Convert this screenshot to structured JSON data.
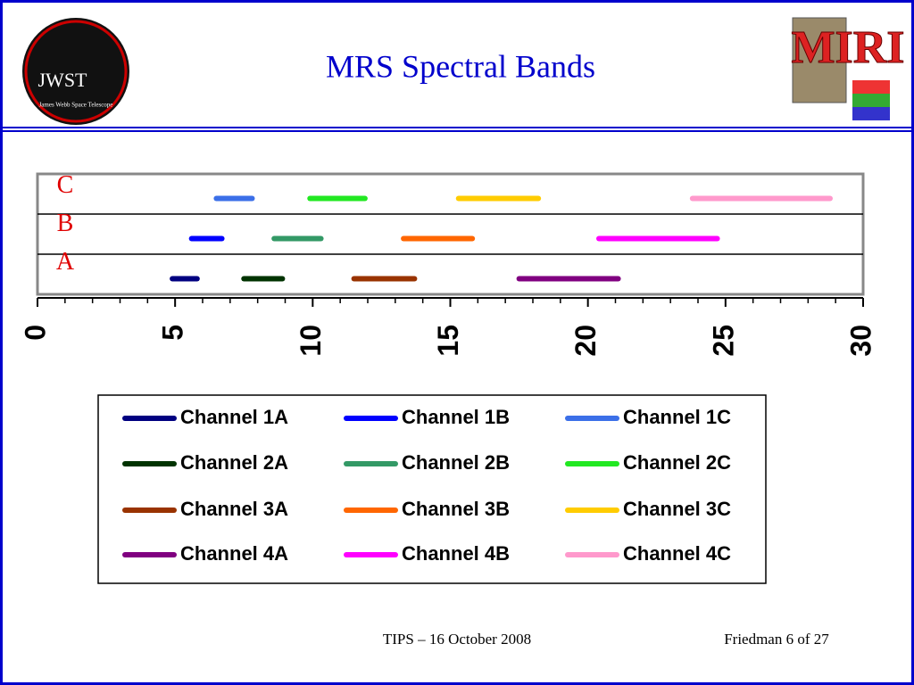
{
  "header": {
    "title": "MRS Spectral Bands",
    "logo_left": {
      "text": "JWST",
      "caption": "James Webb Space Telescope"
    },
    "logo_right": {
      "text": "MIRI"
    }
  },
  "footer": {
    "event": "TIPS – 16 October 2008",
    "page": "Friedman 6 of 27"
  },
  "chart_data": {
    "type": "range",
    "categories": [
      "A",
      "B",
      "C"
    ],
    "xlim": [
      0,
      30
    ],
    "xticks": [
      0,
      5,
      10,
      15,
      20,
      25,
      30
    ],
    "xminorticks": [
      1,
      2,
      3,
      4,
      6,
      7,
      8,
      9,
      11,
      12,
      13,
      14,
      16,
      17,
      18,
      19,
      21,
      22,
      23,
      24,
      26,
      27,
      28,
      29
    ],
    "series": [
      {
        "name": "Channel 1A",
        "color": "#000080",
        "low": [
          4.9,
          null,
          null
        ],
        "high": [
          5.8,
          null,
          null
        ]
      },
      {
        "name": "Channel 1B",
        "color": "#0000ff",
        "low": [
          null,
          5.6,
          null
        ],
        "high": [
          null,
          6.7,
          null
        ]
      },
      {
        "name": "Channel 1C",
        "color": "#3b6fe8",
        "low": [
          null,
          null,
          6.5
        ],
        "high": [
          null,
          null,
          7.8
        ]
      },
      {
        "name": "Channel 2A",
        "color": "#003300",
        "low": [
          7.5,
          null,
          null
        ],
        "high": [
          8.9,
          null,
          null
        ]
      },
      {
        "name": "Channel 2B",
        "color": "#339966",
        "low": [
          null,
          8.6,
          null
        ],
        "high": [
          null,
          10.3,
          null
        ]
      },
      {
        "name": "Channel 2C",
        "color": "#22e822",
        "low": [
          null,
          null,
          9.9
        ],
        "high": [
          null,
          null,
          11.9
        ]
      },
      {
        "name": "Channel 3A",
        "color": "#993300",
        "low": [
          11.5,
          null,
          null
        ],
        "high": [
          13.7,
          null,
          null
        ]
      },
      {
        "name": "Channel 3B",
        "color": "#ff6600",
        "low": [
          null,
          13.3,
          null
        ],
        "high": [
          null,
          15.8,
          null
        ]
      },
      {
        "name": "Channel 3C",
        "color": "#ffcc00",
        "low": [
          null,
          null,
          15.3
        ],
        "high": [
          null,
          null,
          18.2
        ]
      },
      {
        "name": "Channel 4A",
        "color": "#800080",
        "low": [
          17.5,
          null,
          null
        ],
        "high": [
          21.1,
          null,
          null
        ]
      },
      {
        "name": "Channel 4B",
        "color": "#ff00ff",
        "low": [
          null,
          20.4,
          null
        ],
        "high": [
          null,
          24.7,
          null
        ]
      },
      {
        "name": "Channel 4C",
        "color": "#ff99cc",
        "low": [
          null,
          null,
          23.8
        ],
        "high": [
          null,
          null,
          28.8
        ]
      }
    ]
  }
}
